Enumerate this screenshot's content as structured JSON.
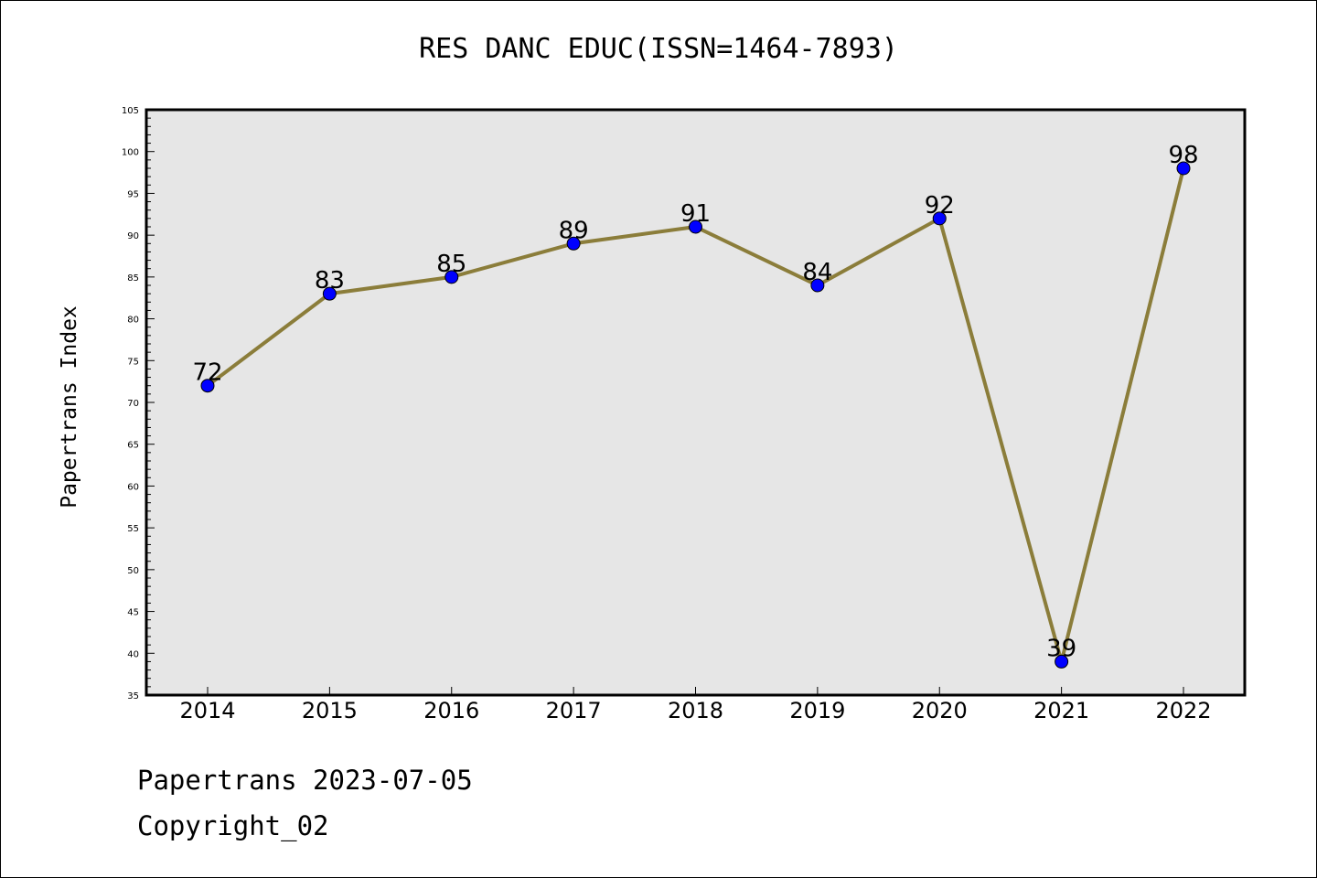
{
  "chart_data": {
    "type": "line",
    "title": "RES DANC EDUC(ISSN=1464-7893)",
    "ylabel": "Papertrans Index",
    "xlabel": "",
    "categories": [
      "2014",
      "2015",
      "2016",
      "2017",
      "2018",
      "2019",
      "2020",
      "2021",
      "2022"
    ],
    "series": [
      {
        "values": [
          72,
          83,
          85,
          89,
          91,
          84,
          92,
          39,
          98
        ]
      }
    ],
    "ylim": [
      35,
      105
    ],
    "yticks": [
      35,
      40,
      45,
      50,
      55,
      60,
      65,
      70,
      75,
      80,
      85,
      90,
      95,
      100,
      105
    ],
    "line_color": "#8b7d3a",
    "marker_color": "#0000ff",
    "plot_background": "#e6e6e6",
    "grid": false,
    "legend": "none"
  },
  "footer": {
    "line1": "Papertrans 2023-07-05",
    "line2": "Copyright_02"
  }
}
